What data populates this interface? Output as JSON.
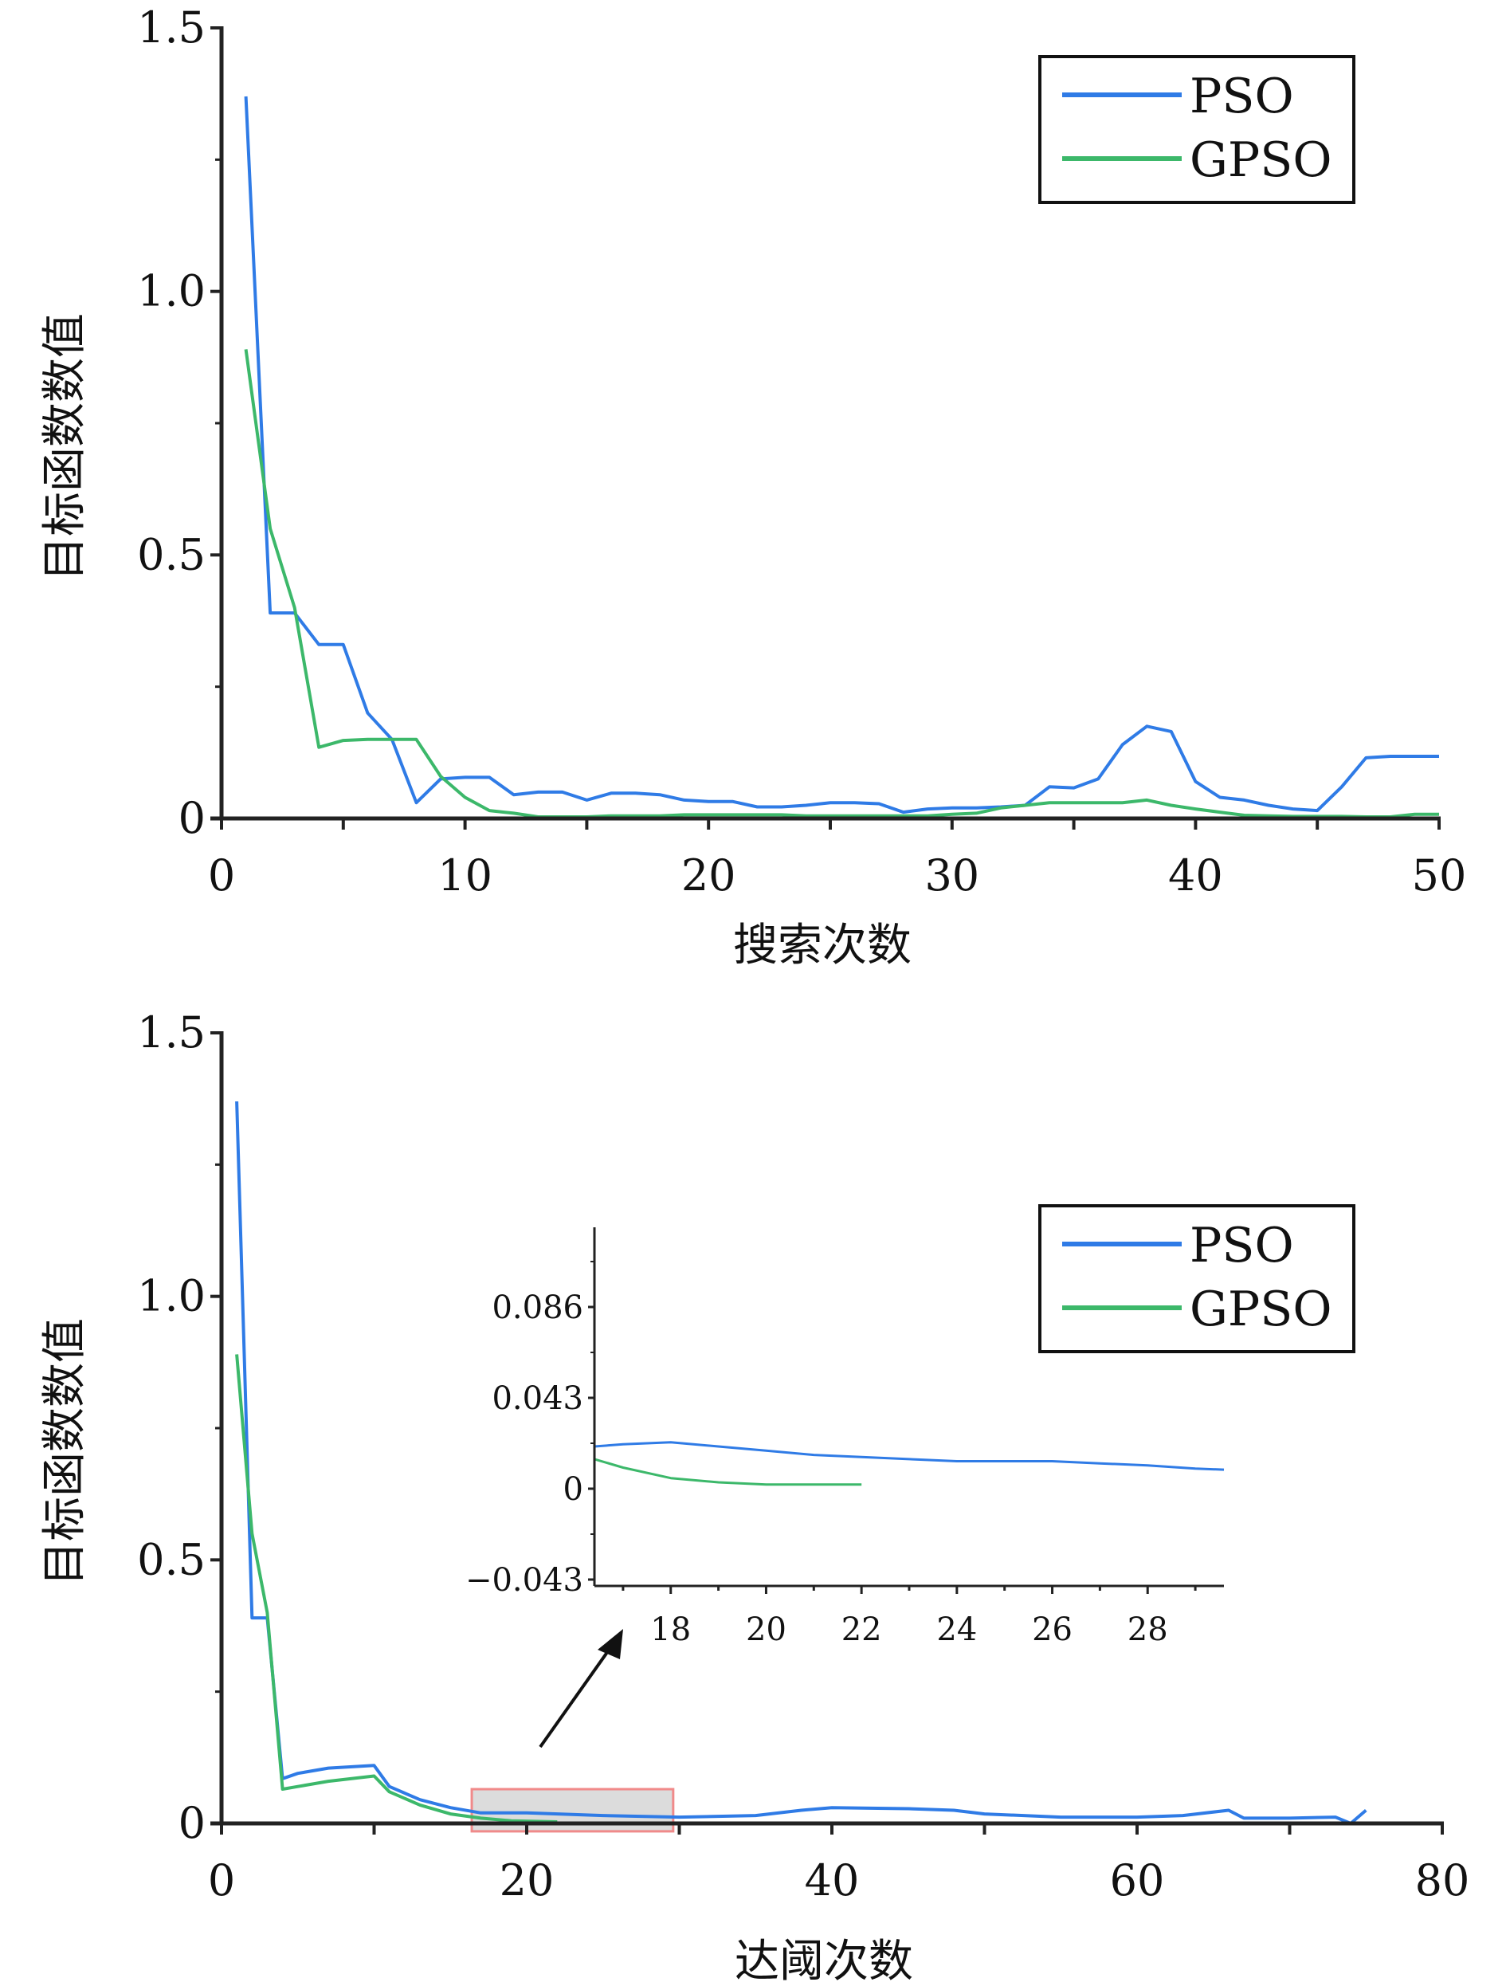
{
  "colors": {
    "PSO": "#2f7be6",
    "GPSO": "#3cb86a",
    "highlight_fill": "#dcdcdc",
    "highlight_stroke": "#f08a8a"
  },
  "chart_data": [
    {
      "type": "line",
      "xlabel": "搜索次数",
      "ylabel": "目标函数数值",
      "xlim": [
        0,
        50
      ],
      "ylim": [
        0,
        1.5
      ],
      "xticks": [
        0,
        10,
        20,
        30,
        40,
        50
      ],
      "xtick_labels": [
        "0",
        "10",
        "20",
        "30",
        "40",
        "50"
      ],
      "yticks": [
        0,
        0.5,
        1.0,
        1.5
      ],
      "ytick_labels": [
        "0",
        "0.5",
        "1.0",
        "1.5"
      ],
      "legend": "top-right",
      "grid": false,
      "series": [
        {
          "name": "PSO",
          "x": [
            1,
            2,
            3,
            4,
            5,
            6,
            7,
            8,
            9,
            10,
            11,
            12,
            13,
            14,
            15,
            16,
            17,
            18,
            19,
            20,
            21,
            22,
            23,
            24,
            25,
            26,
            27,
            28,
            29,
            30,
            31,
            32,
            33,
            34,
            35,
            36,
            37,
            38,
            39,
            40,
            41,
            42,
            43,
            44,
            45,
            46,
            47,
            48,
            49,
            50
          ],
          "values": [
            1.37,
            0.39,
            0.39,
            0.33,
            0.33,
            0.2,
            0.15,
            0.03,
            0.075,
            0.078,
            0.078,
            0.045,
            0.05,
            0.05,
            0.035,
            0.048,
            0.048,
            0.045,
            0.035,
            0.032,
            0.032,
            0.022,
            0.022,
            0.025,
            0.03,
            0.03,
            0.028,
            0.012,
            0.018,
            0.02,
            0.02,
            0.022,
            0.025,
            0.06,
            0.058,
            0.075,
            0.14,
            0.175,
            0.165,
            0.07,
            0.04,
            0.035,
            0.025,
            0.018,
            0.015,
            0.06,
            0.115,
            0.118,
            0.118,
            0.118
          ]
        },
        {
          "name": "GPSO",
          "x": [
            1,
            2,
            3,
            4,
            5,
            6,
            7,
            8,
            9,
            10,
            11,
            12,
            13,
            14,
            15,
            16,
            17,
            18,
            19,
            20,
            21,
            22,
            23,
            24,
            25,
            26,
            27,
            28,
            29,
            30,
            31,
            32,
            33,
            34,
            35,
            36,
            37,
            38,
            39,
            40,
            41,
            42,
            43,
            44,
            45,
            46,
            47,
            48,
            49,
            50
          ],
          "values": [
            0.89,
            0.55,
            0.4,
            0.135,
            0.148,
            0.15,
            0.15,
            0.15,
            0.08,
            0.04,
            0.015,
            0.01,
            0.003,
            0.003,
            0.003,
            0.005,
            0.005,
            0.005,
            0.007,
            0.007,
            0.007,
            0.007,
            0.007,
            0.005,
            0.005,
            0.005,
            0.005,
            0.005,
            0.005,
            0.008,
            0.01,
            0.02,
            0.025,
            0.03,
            0.03,
            0.03,
            0.03,
            0.035,
            0.025,
            0.018,
            0.012,
            0.006,
            0.005,
            0.004,
            0.004,
            0.004,
            0.003,
            0.003,
            0.008,
            0.008
          ]
        }
      ]
    },
    {
      "type": "line",
      "xlabel": "达阈次数",
      "ylabel": "目标函数数值",
      "xlim": [
        0,
        80
      ],
      "ylim": [
        0,
        1.5
      ],
      "xticks": [
        0,
        20,
        40,
        60,
        80
      ],
      "xtick_labels": [
        "0",
        "20",
        "40",
        "60",
        "80"
      ],
      "yticks": [
        0,
        0.5,
        1.0,
        1.5
      ],
      "ytick_labels": [
        "0",
        "0.5",
        "1.0",
        "1.5"
      ],
      "legend": "top-right",
      "grid": false,
      "highlight_region": {
        "x": [
          16.4,
          29.6
        ],
        "y": [
          -0.015,
          0.065
        ]
      },
      "series": [
        {
          "name": "PSO",
          "x": [
            1,
            2,
            3,
            4,
            5,
            7,
            10,
            11,
            13,
            15,
            17,
            20,
            25,
            30,
            35,
            38,
            40,
            45,
            48,
            50,
            55,
            60,
            63,
            66,
            67,
            70,
            73,
            74,
            75
          ],
          "values": [
            1.37,
            0.39,
            0.39,
            0.085,
            0.095,
            0.105,
            0.11,
            0.07,
            0.045,
            0.03,
            0.02,
            0.02,
            0.015,
            0.012,
            0.015,
            0.025,
            0.03,
            0.028,
            0.025,
            0.018,
            0.012,
            0.012,
            0.015,
            0.025,
            0.01,
            0.01,
            0.012,
            0.0,
            0.025
          ]
        },
        {
          "name": "GPSO",
          "x": [
            1,
            2,
            3,
            4,
            5,
            7,
            10,
            11,
            13,
            15,
            17,
            19,
            22
          ],
          "values": [
            0.89,
            0.55,
            0.4,
            0.065,
            0.07,
            0.08,
            0.09,
            0.06,
            0.035,
            0.018,
            0.01,
            0.005,
            0.003
          ]
        }
      ]
    },
    {
      "type": "line",
      "role": "inset",
      "xlim": [
        16.4,
        29.6
      ],
      "ylim": [
        -0.043,
        0.12
      ],
      "xticks": [
        18,
        20,
        22,
        24,
        26,
        28
      ],
      "xtick_labels": [
        "18",
        "20",
        "22",
        "24",
        "26",
        "28"
      ],
      "yticks": [
        -0.043,
        0,
        0.043,
        0.086
      ],
      "ytick_labels": [
        "−0.043",
        "0",
        "0.043",
        "0.086"
      ],
      "series": [
        {
          "name": "PSO",
          "x": [
            16.4,
            17,
            18,
            19,
            20,
            21,
            22,
            23,
            24,
            25,
            26,
            27,
            28,
            29,
            29.6
          ],
          "values": [
            0.02,
            0.021,
            0.022,
            0.02,
            0.018,
            0.016,
            0.015,
            0.014,
            0.013,
            0.013,
            0.013,
            0.012,
            0.011,
            0.0095,
            0.009
          ]
        },
        {
          "name": "GPSO",
          "x": [
            16.4,
            17,
            18,
            19,
            20,
            21,
            22
          ],
          "values": [
            0.014,
            0.01,
            0.005,
            0.003,
            0.002,
            0.002,
            0.002
          ]
        }
      ]
    }
  ]
}
